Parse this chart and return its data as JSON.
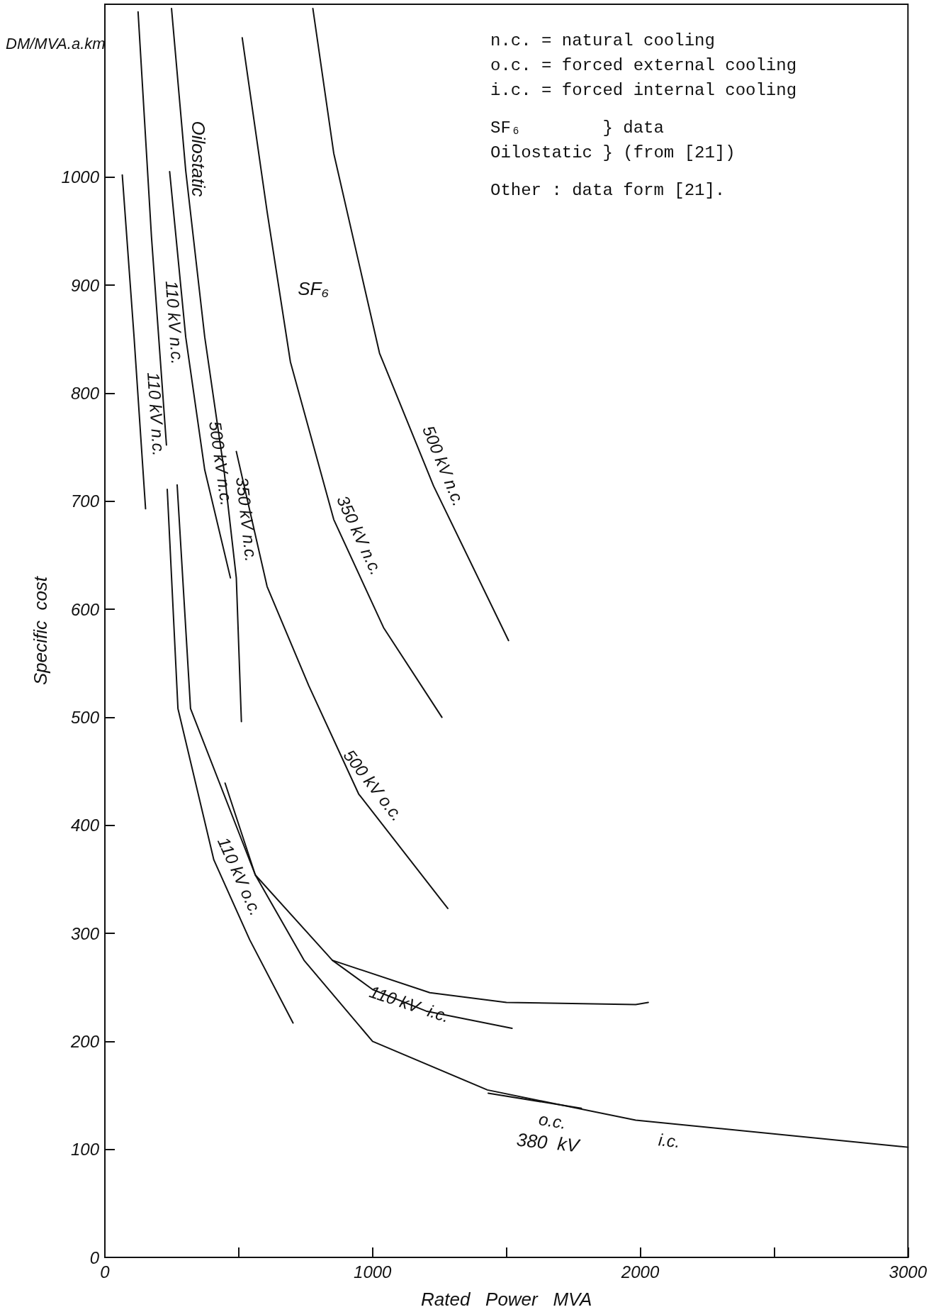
{
  "chart_data": {
    "type": "line",
    "xlabel": "Rated   Power   MVA",
    "ylabel": "Specific  cost",
    "xlim": [
      0,
      3000
    ],
    "ylim": [
      0,
      1160
    ],
    "xticks": [
      0,
      {
        "value": 500,
        "label": null
      },
      1000,
      {
        "value": 1500,
        "label": null
      },
      2000,
      {
        "value": 2500,
        "label": null
      },
      3000
    ],
    "yticks": [
      0,
      100,
      200,
      300,
      400,
      500,
      600,
      700,
      800,
      900,
      1000
    ],
    "grid": false,
    "legend": false,
    "marker": "none",
    "series": [
      {
        "name": "110 kV n.c.",
        "color": "#111111",
        "x": [
          65,
          109,
          152
        ],
        "values": [
          1002,
          852,
          693
        ]
      },
      {
        "name": "110 kV n.c.",
        "color": "#111111",
        "x": [
          124,
          174,
          230
        ],
        "values": [
          1153,
          945,
          752
        ]
      },
      {
        "name": "500 kV n.c.",
        "color": "#111111",
        "x": [
          242,
          302,
          373,
          469
        ],
        "values": [
          1005,
          852,
          729,
          629
        ]
      },
      {
        "name": "350 kV n.c.",
        "color": "#111111",
        "x": [
          249,
          302,
          373,
          445,
          491,
          510
        ],
        "values": [
          1156,
          1006,
          852,
          729,
          629,
          496
        ]
      },
      {
        "name": "500 kV o.c.",
        "color": "#111111",
        "x": [
          491,
          606,
          762,
          948,
          1281
        ],
        "values": [
          746,
          621,
          529,
          429,
          323
        ]
      },
      {
        "name": "350 kV n.c.",
        "color": "#111111",
        "x": [
          513,
          606,
          693,
          855,
          1041,
          1259
        ],
        "values": [
          1129,
          968,
          829,
          683,
          583,
          500
        ]
      },
      {
        "name": "500 kV n.c.",
        "color": "#111111",
        "x": [
          777,
          855,
          1026,
          1228,
          1508
        ],
        "values": [
          1156,
          1022,
          837,
          714,
          571
        ]
      },
      {
        "name": "110 kV o.c.",
        "color": "#111111",
        "x": [
          233,
          273,
          407,
          541,
          703
        ],
        "values": [
          711,
          508,
          368,
          294,
          217
        ]
      },
      {
        "name": "110 kV  i.c.",
        "color": "#111111",
        "x": [
          270,
          320,
          562,
          850,
          1214,
          1500,
          1983,
          2030
        ],
        "values": [
          715,
          508,
          354,
          275,
          245,
          236,
          234,
          236
        ]
      },
      {
        "color": "#111111",
        "x": [
          850,
          1000,
          1200,
          1521
        ],
        "values": [
          275,
          248,
          228,
          212
        ]
      },
      {
        "name": "i.c.",
        "color": "#111111",
        "x": [
          449,
          562,
          744,
          1000,
          1429,
          1983,
          3000
        ],
        "values": [
          439,
          354,
          275,
          200,
          155,
          127,
          102
        ]
      },
      {
        "name": "o.c.",
        "color": "#111111",
        "x": [
          1432,
          1780
        ],
        "values": [
          152,
          138
        ]
      }
    ],
    "annotations": [
      "DM/MVA.a.km",
      "n.c. = natural cooling",
      "o.c. = forced external cooling",
      "i.c. = forced internal cooling",
      "SF₆        } data",
      "Oilostatic } (from [21])",
      "Other : data form [21].",
      "Oilostatic",
      "SF₆",
      "380  kV"
    ]
  }
}
